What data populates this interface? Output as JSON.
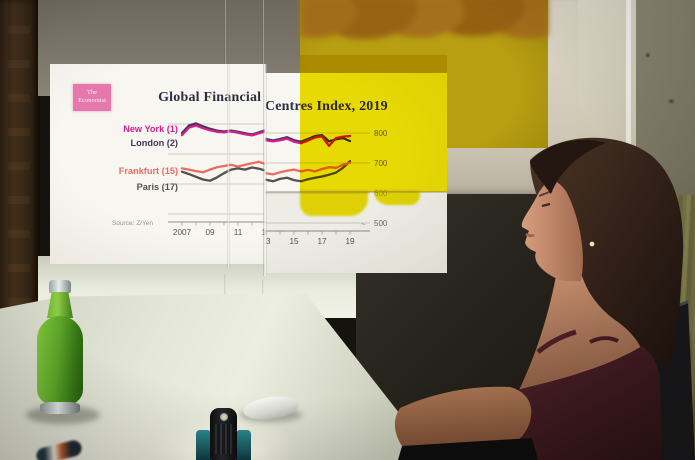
{
  "projection": {
    "logo": {
      "line1": "The",
      "line2": "Economist"
    }
  },
  "chart_data": {
    "type": "line",
    "title": "Global Financial Centres Index, 2019",
    "source": "Source: Z/Yen",
    "axis_end_mark": "~",
    "x": [
      2007,
      2007.5,
      2008,
      2008.5,
      2009,
      2009.5,
      2010,
      2010.5,
      2011,
      2011.5,
      2012,
      2012.5,
      2013,
      2013.5,
      2014,
      2014.5,
      2015,
      2015.5,
      2016,
      2016.5,
      2017,
      2017.5,
      2018,
      2018.5,
      2019
    ],
    "x_tick_labels": [
      "2007",
      "09",
      "11",
      "13",
      "15",
      "17",
      "19"
    ],
    "x_tick_years": [
      2007,
      2009,
      2011,
      2013,
      2015,
      2017,
      2019
    ],
    "y_tick_labels": [
      "800",
      "700",
      "600",
      "500"
    ],
    "y_ticks": [
      800,
      700,
      600,
      500
    ],
    "xlim": [
      2007,
      2019
    ],
    "ylim": [
      480,
      820
    ],
    "grid": "horizontal",
    "legend_position": "left",
    "series": [
      {
        "name": "New York (1)",
        "color": "#d81a92",
        "values": [
          763,
          788,
          795,
          786,
          779,
          774,
          772,
          775,
          771,
          766,
          762,
          769,
          776,
          772,
          776,
          781,
          771,
          766,
          775,
          785,
          789,
          757,
          783,
          788,
          790
        ]
      },
      {
        "name": "London (2)",
        "color": "#3c3956",
        "values": [
          770,
          795,
          802,
          792,
          784,
          778,
          775,
          778,
          774,
          769,
          765,
          772,
          780,
          775,
          780,
          786,
          776,
          771,
          780,
          790,
          793,
          772,
          779,
          783,
          773
        ]
      },
      {
        "name": "Frankfurt (15)",
        "color": "#ef6b62",
        "values": [
          652,
          648,
          643,
          639,
          648,
          656,
          660,
          664,
          658,
          664,
          669,
          674,
          666,
          662,
          669,
          674,
          678,
          672,
          677,
          672,
          680,
          686,
          684,
          694,
          701
        ]
      },
      {
        "name": "Paris (17)",
        "color": "#52524a",
        "values": [
          641,
          633,
          624,
          615,
          611,
          622,
          636,
          648,
          652,
          648,
          655,
          651,
          644,
          639,
          647,
          651,
          643,
          639,
          646,
          651,
          655,
          661,
          668,
          684,
          706
        ]
      }
    ]
  }
}
